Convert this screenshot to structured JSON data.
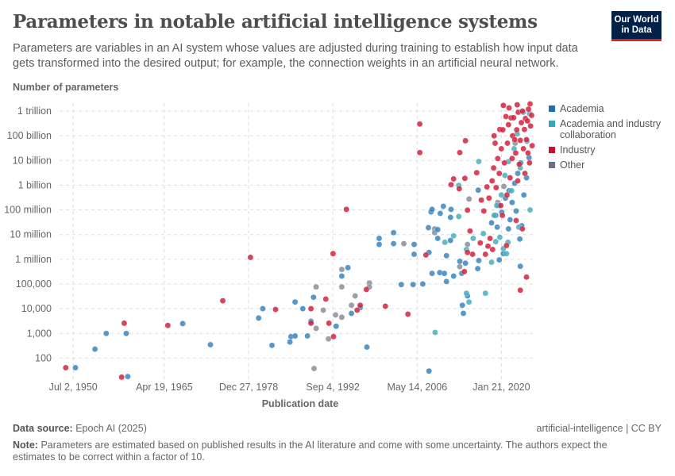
{
  "header": {
    "title": "Parameters in notable artificial intelligence systems",
    "subtitle": "Parameters are variables in an AI system whose values are adjusted during training to establish how input data gets transformed into the desired output; for example, the connection weights in an artificial neural network.",
    "logo": "Our World in Data"
  },
  "footer": {
    "source_label": "Data source:",
    "source": "Epoch AI (2025)",
    "license": "artificial-intelligence | CC BY",
    "note_label": "Note:",
    "note": "Parameters are estimated based on published results in the AI literature and come with some uncertainty. The authors expect the estimates to be correct within a factor of 10."
  },
  "chart_data": {
    "type": "scatter",
    "ylabel": "Number of parameters",
    "xlabel": "Publication date",
    "yscale": "log",
    "ylim": [
      14,
      2100000000000
    ],
    "xlim": [
      "1948-04",
      "2025-04"
    ],
    "grid": true,
    "legend_position": "right",
    "yticks": [
      {
        "v": 1000000000000.0,
        "label": "1 trillion"
      },
      {
        "v": 100000000000.0,
        "label": "100 billion"
      },
      {
        "v": 10000000000.0,
        "label": "10 billion"
      },
      {
        "v": 1000000000.0,
        "label": "1 billion"
      },
      {
        "v": 100000000.0,
        "label": "100 million"
      },
      {
        "v": 10000000.0,
        "label": "10 million"
      },
      {
        "v": 1000000.0,
        "label": "1 million"
      },
      {
        "v": 100000.0,
        "label": "100,000"
      },
      {
        "v": 10000.0,
        "label": "10,000"
      },
      {
        "v": 1000.0,
        "label": "1,000"
      },
      {
        "v": 100,
        "label": "100"
      }
    ],
    "xticks": [
      {
        "v": "1950-07-02",
        "label": "Jul 2, 1950"
      },
      {
        "v": "1965-04-19",
        "label": "Apr 19, 1965"
      },
      {
        "v": "1978-12-27",
        "label": "Dec 27, 1978"
      },
      {
        "v": "1992-09-04",
        "label": "Sep 4, 1992"
      },
      {
        "v": "2006-05-14",
        "label": "May 14, 2006"
      },
      {
        "v": "2020-01-21",
        "label": "Jan 21, 2020"
      }
    ],
    "series": [
      {
        "name": "Academia",
        "color": "#1f6fb0",
        "point_color": "#3a86bf",
        "points": [
          [
            "1950-11",
            41
          ],
          [
            "1954-01",
            230
          ],
          [
            "1955-11",
            1000
          ],
          [
            "1959-02",
            1000
          ],
          [
            "1959-05",
            18
          ],
          [
            "1968-04",
            2500
          ],
          [
            "1972-10",
            350
          ],
          [
            "1981-04",
            10000
          ],
          [
            "1980-08",
            4200
          ],
          [
            "1982-10",
            330
          ],
          [
            "1985-11",
            740
          ],
          [
            "1986-07",
            790
          ],
          [
            "1985-09",
            450
          ],
          [
            "1986-07",
            18600
          ],
          [
            "1987-10",
            10000
          ],
          [
            "1988-07",
            790
          ],
          [
            "1989-02",
            3100
          ],
          [
            "1989-07",
            29000
          ],
          [
            "1993-03",
            1950
          ],
          [
            "1994-02",
            210000
          ],
          [
            "1995-02",
            460000
          ],
          [
            "1995-09",
            6500
          ],
          [
            "1997-02",
            11000
          ],
          [
            "1998-03",
            280
          ],
          [
            "2000-03",
            7000000
          ],
          [
            "2000-03",
            4000000
          ],
          [
            "2002-07",
            12000000
          ],
          [
            "2002-07",
            4300000
          ],
          [
            "2005-11",
            4000000
          ],
          [
            "2005-11",
            1600000
          ],
          [
            "2003-10",
            95000
          ],
          [
            "2005-09",
            95000
          ],
          [
            "2007-04",
            100000
          ],
          [
            "2008-04",
            30
          ],
          [
            "2008-04",
            1900000
          ],
          [
            "2008-03",
            19000000
          ],
          [
            "2009-09",
            16000000
          ],
          [
            "2009-09",
            7000000
          ],
          [
            "2008-10",
            270000
          ],
          [
            "2010-01",
            290000
          ],
          [
            "2010-10",
            270000
          ],
          [
            "2011-02",
            126000
          ],
          [
            "2012-04",
            210000
          ],
          [
            "2011-02",
            1400000
          ],
          [
            "2008-08",
            83000000
          ],
          [
            "2008-10",
            105000000
          ],
          [
            "2010-02",
            72000000
          ],
          [
            "2010-08",
            140000000
          ],
          [
            "2011-10",
            5800000
          ],
          [
            "2013-04",
            830000
          ],
          [
            "2013-08",
            270000
          ],
          [
            "2013-09",
            13800
          ],
          [
            "2013-11",
            6500
          ],
          [
            "2014-07",
            33000
          ],
          [
            "2014-03",
            700000
          ],
          [
            "2016-04",
            630000000
          ],
          [
            "2016-03",
            420000
          ],
          [
            "2016-05",
            890000
          ],
          [
            "2019-09",
            950000
          ],
          [
            "2020-05",
            1700000
          ],
          [
            "2021-03",
            17000000
          ],
          [
            "2023-01",
            6600000
          ],
          [
            "2023-02",
            520000
          ],
          [
            "2023-05",
            23000000
          ],
          [
            "2011-11",
            105000000
          ],
          [
            "2011-10",
            50000000
          ],
          [
            "2018-06",
            30000000
          ],
          [
            "2019-02",
            60000000
          ],
          [
            "2019-08",
            150000000
          ],
          [
            "2020-02",
            80000000
          ],
          [
            "2020-09",
            300000000
          ],
          [
            "2021-04",
            600000000
          ],
          [
            "2021-10",
            200000000
          ],
          [
            "2022-03",
            1200000000
          ],
          [
            "2022-09",
            3000000000
          ],
          [
            "2023-03",
            8000000000
          ],
          [
            "2023-09",
            400000000
          ],
          [
            "2024-02",
            2000000000
          ],
          [
            "2024-07",
            13000000000
          ],
          [
            "2021-06",
            40000000
          ],
          [
            "2019-05",
            20000000
          ],
          [
            "2022-06",
            90000000
          ]
        ]
      },
      {
        "name": "Academia and industry collaboration",
        "color": "#38a6b8",
        "point_color": "#4aaebd",
        "points": [
          [
            "2009-04",
            1100
          ],
          [
            "2010-11",
            4900000
          ],
          [
            "2012-04",
            8900000
          ],
          [
            "2013-02",
            980000000
          ],
          [
            "2013-02",
            54000000
          ],
          [
            "2014-05",
            42000
          ],
          [
            "2014-10",
            18600
          ],
          [
            "2017-06",
            42000
          ],
          [
            "2014-05",
            2500000
          ],
          [
            "2015-06",
            7000000
          ],
          [
            "2017-02",
            11000000
          ],
          [
            "2018-06",
            760000
          ],
          [
            "2019-02",
            5200000
          ],
          [
            "2019-10",
            7800000
          ],
          [
            "2020-05",
            2700000
          ],
          [
            "2020-11",
            1700000
          ],
          [
            "2021-02",
            4900000
          ],
          [
            "2016-05",
            9100000000
          ],
          [
            "2019-04",
            150000000
          ],
          [
            "2020-01",
            400000000
          ],
          [
            "2020-08",
            2500000000
          ],
          [
            "2021-03",
            9000000000
          ],
          [
            "2021-09",
            600000000
          ],
          [
            "2022-02",
            30000000000
          ],
          [
            "2022-08",
            120000000000
          ],
          [
            "2023-02",
            5000000000
          ],
          [
            "2023-08",
            900000000000
          ],
          [
            "2024-03",
            60000000000
          ],
          [
            "2024-09",
            100000000
          ],
          [
            "2024-08",
            800000000000
          ],
          [
            "2022-11",
            20000000
          ],
          [
            "2018-11",
            60000000
          ]
        ]
      },
      {
        "name": "Industry",
        "color": "#c8102e",
        "point_color": "#d2233f",
        "points": [
          [
            "1949-04",
            41
          ],
          [
            "1958-10",
            2600
          ],
          [
            "1958-05",
            17
          ],
          [
            "1965-11",
            2100
          ],
          [
            "1974-10",
            21000
          ],
          [
            "1979-04",
            1200000
          ],
          [
            "1983-05",
            9300
          ],
          [
            "1989-02",
            10000
          ],
          [
            "1989-02",
            2600
          ],
          [
            "1991-07",
            24500
          ],
          [
            "1992-01",
            2600
          ],
          [
            "1992-10",
            740
          ],
          [
            "1992-09",
            1700000
          ],
          [
            "1994-11",
            105000000
          ],
          [
            "1996-08",
            8700
          ],
          [
            "1997-02",
            13800
          ],
          [
            "1998-02",
            60000
          ],
          [
            "2001-03",
            12600
          ],
          [
            "2004-11",
            6000
          ],
          [
            "2006-10",
            300000000000
          ],
          [
            "2006-10",
            21000000000
          ],
          [
            "2007-10",
            1500000
          ],
          [
            "2014-01",
            320000
          ],
          [
            "2013-04",
            21000000000
          ],
          [
            "2014-03",
            63000000000
          ],
          [
            "2012-04",
            1800000000
          ],
          [
            "2011-11",
            1050000000
          ],
          [
            "2013-03",
            720000000
          ],
          [
            "2014-02",
            1900000000
          ],
          [
            "2016-01",
            3200000000
          ],
          [
            "2017-09",
            850000000
          ],
          [
            "2018-11",
            100000000000
          ],
          [
            "2019-01",
            50000000000
          ],
          [
            "2019-10",
            180000000000
          ],
          [
            "2020-05",
            1700000000000
          ],
          [
            "2021-04",
            1350000000000
          ],
          [
            "2022-08",
            1800000000000
          ],
          [
            "2024-09",
            1950000000000
          ],
          [
            "2024-02",
            190000
          ],
          [
            "2023-02",
            56000
          ],
          [
            "2014-07",
            98000000
          ],
          [
            "2015-05",
            1600000
          ],
          [
            "2014-07",
            1900000
          ],
          [
            "2017-06",
            1600000
          ],
          [
            "2017-11",
            3400000
          ],
          [
            "2018-08",
            2500000
          ],
          [
            "2020-11",
            3600000
          ],
          [
            "2014-12",
            14000000
          ],
          [
            "2018-03",
            7000000
          ],
          [
            "2016-08",
            4600000
          ],
          [
            "2023-06",
            17000000
          ],
          [
            "2022-06",
            37000000
          ],
          [
            "2018-01",
            300000000
          ],
          [
            "2018-07",
            1500000000
          ],
          [
            "2018-10",
            5000000000
          ],
          [
            "2019-03",
            800000000
          ],
          [
            "2019-06",
            12000000000
          ],
          [
            "2019-09",
            3000000000
          ],
          [
            "2020-01",
            30000000000
          ],
          [
            "2020-04",
            175000000000
          ],
          [
            "2020-07",
            8000000000
          ],
          [
            "2020-10",
            600000000000
          ],
          [
            "2021-01",
            50000000000
          ],
          [
            "2021-03",
            280000000000
          ],
          [
            "2021-06",
            2000000000
          ],
          [
            "2021-08",
            530000000000
          ],
          [
            "2021-11",
            100000000000
          ],
          [
            "2022-01",
            540000000000
          ],
          [
            "2022-03",
            70000000000
          ],
          [
            "2022-05",
            20000000000
          ],
          [
            "2022-07",
            175000000000
          ],
          [
            "2022-10",
            900000000000
          ],
          [
            "2022-12",
            7000000000
          ],
          [
            "2023-02",
            65000000000
          ],
          [
            "2023-04",
            340000000000
          ],
          [
            "2023-06",
            1000000000000
          ],
          [
            "2023-08",
            30000000000
          ],
          [
            "2023-10",
            180000000000
          ],
          [
            "2023-12",
            500000000000
          ],
          [
            "2024-02",
            70000000000
          ],
          [
            "2024-04",
            400000000000
          ],
          [
            "2024-06",
            1200000000000
          ],
          [
            "2024-08",
            8000000000
          ],
          [
            "2024-10",
            250000000000
          ],
          [
            "2024-12",
            670000000000
          ],
          [
            "2025-01",
            40000000000
          ],
          [
            "2019-12",
            150000000
          ],
          [
            "2020-12",
            400000000
          ],
          [
            "2021-10",
            12000000000
          ],
          [
            "2022-09",
            1500000000
          ],
          [
            "2023-11",
            3000000000
          ],
          [
            "2024-05",
            20000000000
          ],
          [
            "2017-03",
            90000000
          ],
          [
            "2016-10",
            250000000
          ],
          [
            "2020-03",
            60000000
          ]
        ]
      },
      {
        "name": "Other",
        "color": "#6d7282",
        "point_color": "#8a8e9a",
        "points": [
          [
            "1989-12",
            1600
          ],
          [
            "1989-08",
            38
          ],
          [
            "1989-12",
            76000
          ],
          [
            "1991-02",
            8700
          ],
          [
            "1991-12",
            600
          ],
          [
            "1993-02",
            5600
          ],
          [
            "1994-02",
            4500
          ],
          [
            "1994-02",
            76000
          ],
          [
            "1994-02",
            390000
          ],
          [
            "1996-04",
            33000
          ],
          [
            "1995-09",
            13800
          ],
          [
            "1998-08",
            110000
          ],
          [
            "1998-08",
            76000
          ],
          [
            "2004-03",
            4300000
          ],
          [
            "2009-03",
            17000000
          ],
          [
            "2009-03",
            12000000
          ],
          [
            "2013-04",
            500000
          ],
          [
            "2014-10",
            275000000
          ],
          [
            "2014-07",
            4000000
          ],
          [
            "2020-06",
            900000000
          ],
          [
            "2022-04",
            50000000000
          ],
          [
            "2019-06",
            200000000
          ]
        ]
      }
    ]
  }
}
